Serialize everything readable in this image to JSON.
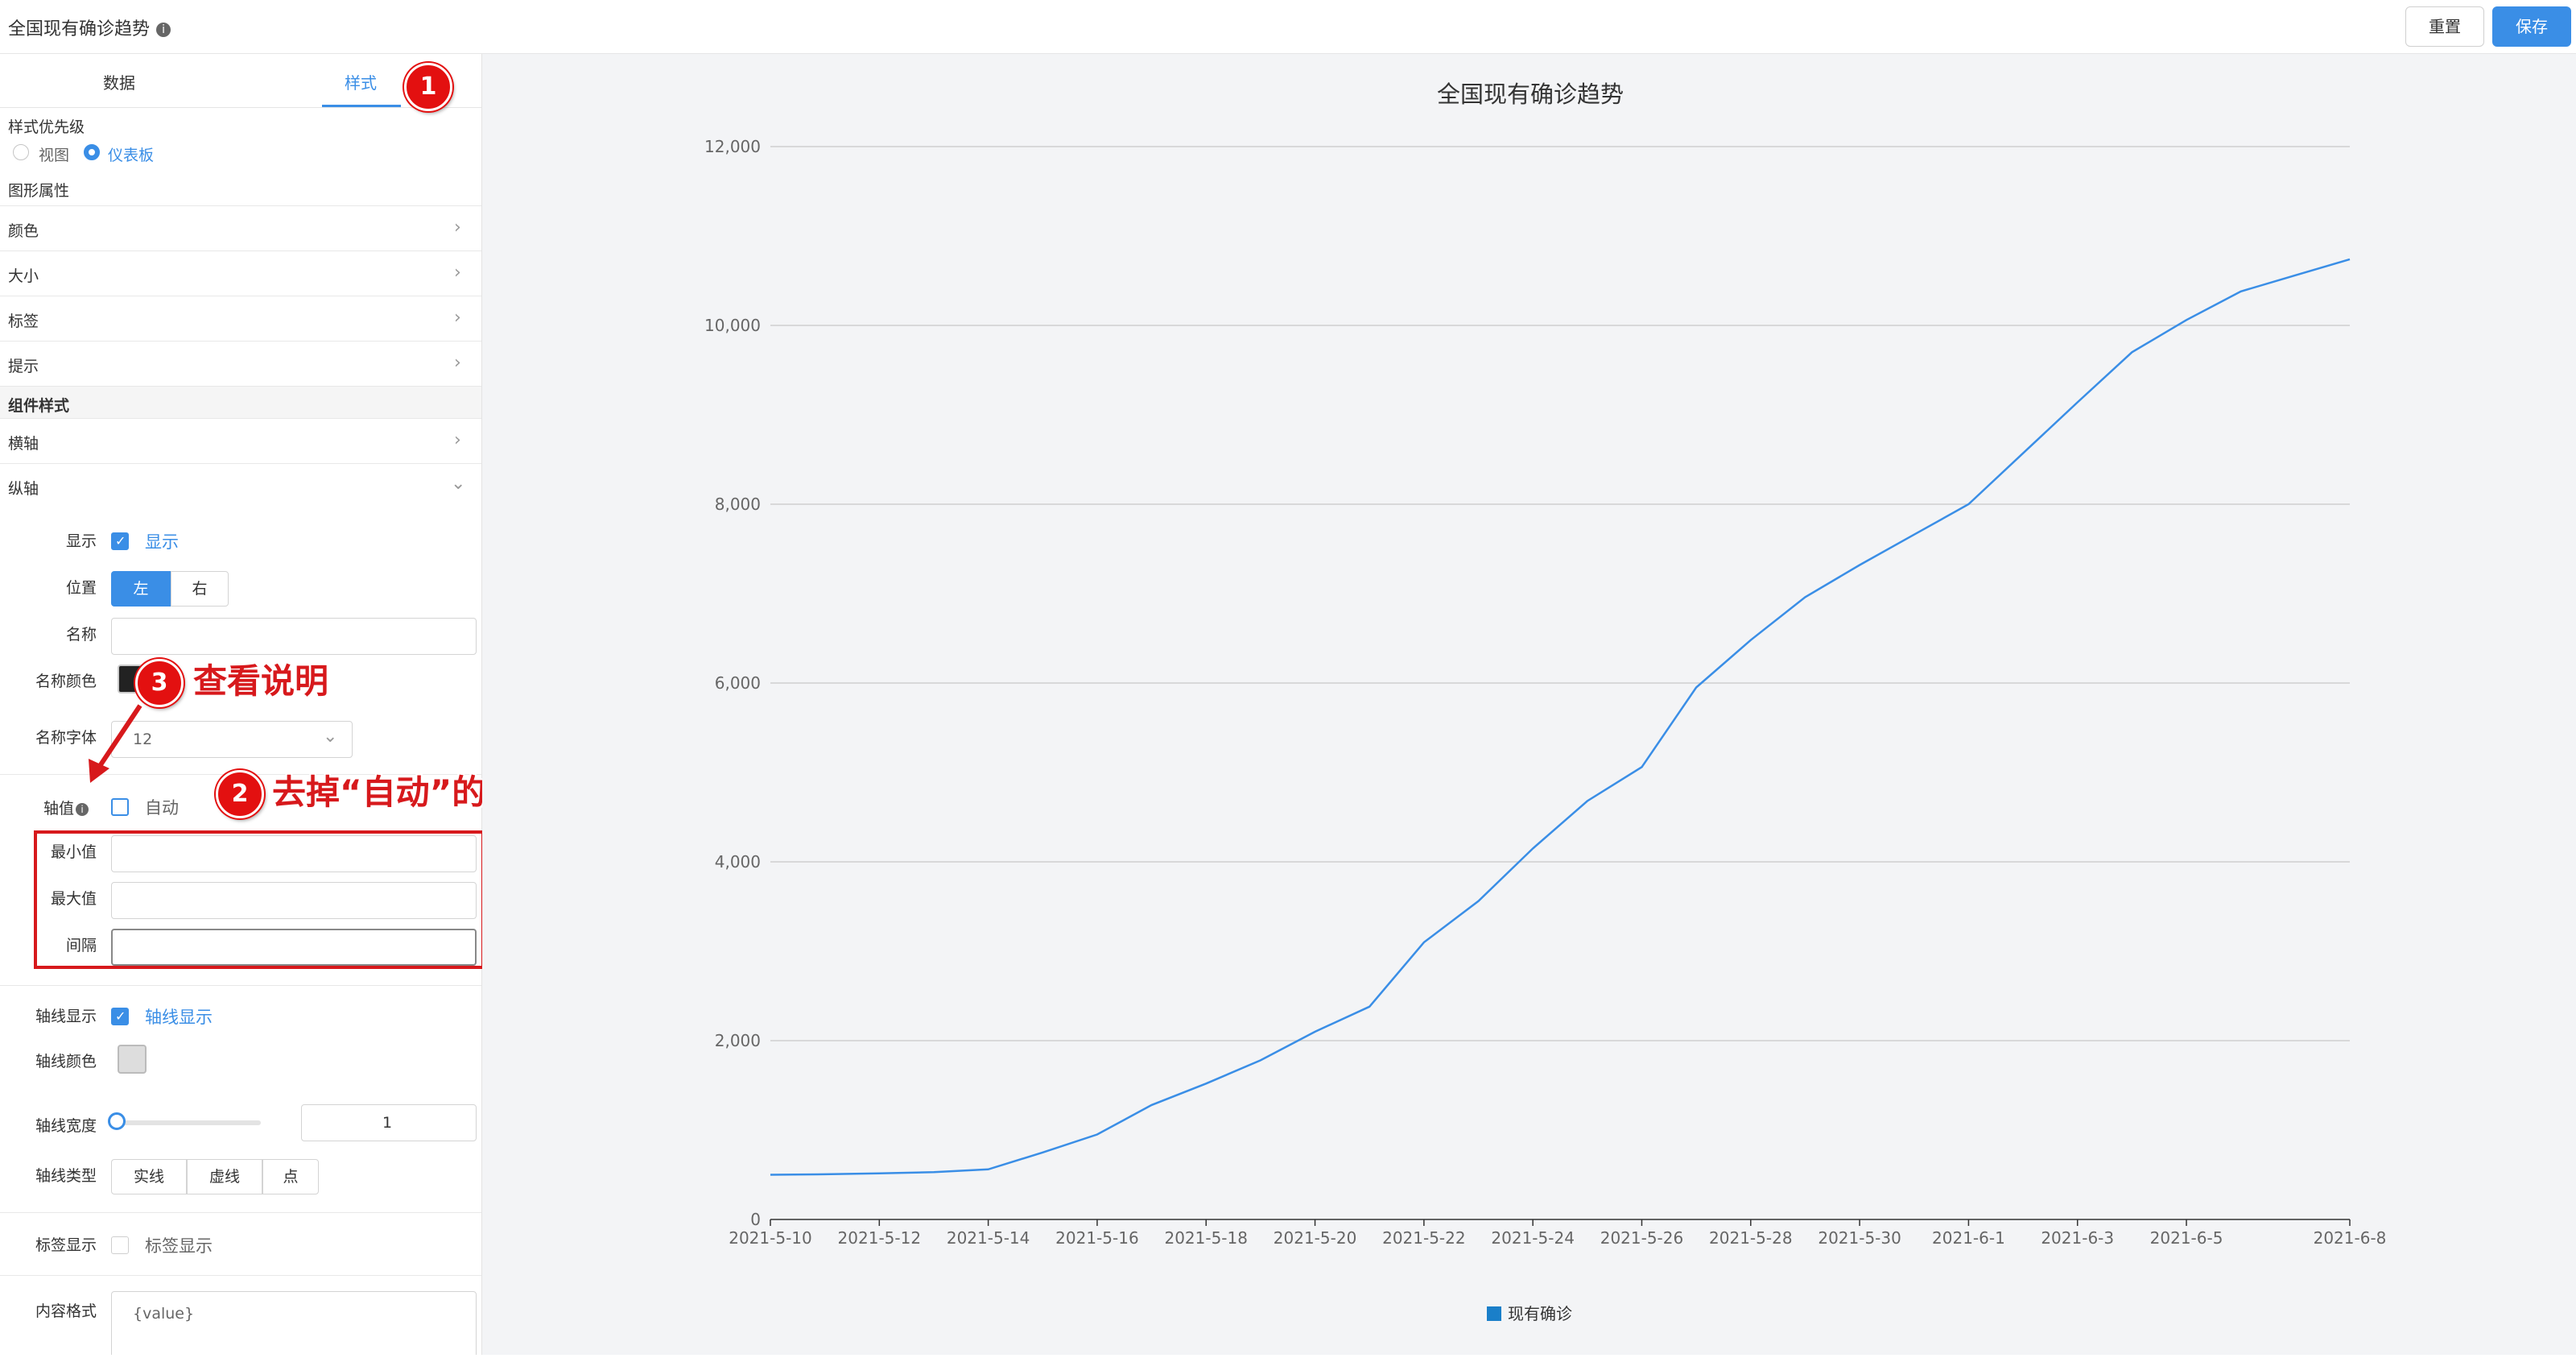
{
  "header": {
    "title": "全国现有确诊趋势",
    "info_icon": "info-icon",
    "reset_label": "重置",
    "save_label": "保存"
  },
  "tabs": {
    "data": "数据",
    "style": "样式",
    "active": "style"
  },
  "style_priority": {
    "label": "样式优先级",
    "options": [
      "视图",
      "仪表板"
    ],
    "selected": "仪表板"
  },
  "graphic_props": {
    "label": "图形属性",
    "items": [
      "颜色",
      "大小",
      "标签",
      "提示"
    ]
  },
  "component_style": {
    "label": "组件样式",
    "x_axis": "横轴",
    "y_axis": "纵轴"
  },
  "y_axis_settings": {
    "show_label": "显示",
    "show_checkbox_text": "显示",
    "show_checked": true,
    "position_label": "位置",
    "position_options": [
      "左",
      "右"
    ],
    "position_selected": "左",
    "name_label": "名称",
    "name_value": "",
    "name_color_label": "名称颜色",
    "name_font_label": "名称字体",
    "name_font_value": "12",
    "axis_value_label": "轴值",
    "auto_text": "自动",
    "auto_checked": false,
    "min_label": "最小值",
    "max_label": "最大值",
    "interval_label": "间隔",
    "min_value": "",
    "max_value": "",
    "interval_value": "",
    "axis_line_show_label": "轴线显示",
    "axis_line_show_text": "轴线显示",
    "axis_line_show_checked": true,
    "axis_line_color_label": "轴线颜色",
    "axis_line_width_label": "轴线宽度",
    "axis_line_width_value": "1",
    "axis_line_type_label": "轴线类型",
    "axis_line_types": [
      "实线",
      "虚线",
      "点"
    ],
    "tick_label_show_label": "标签显示",
    "tick_label_show_text": "标签显示",
    "tick_label_show_checked": false,
    "content_format_label": "内容格式",
    "content_format_value": "{value}"
  },
  "annotations": [
    {
      "number": "1",
      "text": ""
    },
    {
      "number": "2",
      "text": "去掉“自动”的勾选"
    },
    {
      "number": "3",
      "text": "查看说明"
    }
  ],
  "colors": {
    "accent": "#3a8ee6",
    "line": "#3a8ee6",
    "annotation": "#d7191c"
  },
  "chart_data": {
    "type": "line",
    "title": "全国现有确诊趋势",
    "xlabel": "",
    "ylabel": "",
    "ylim": [
      0,
      12000
    ],
    "yticks": [
      0,
      2000,
      4000,
      6000,
      8000,
      10000,
      12000
    ],
    "ytick_labels": [
      "0",
      "2,000",
      "4,000",
      "6,000",
      "8,000",
      "10,000",
      "12,000"
    ],
    "xtick_labels": [
      "2021-5-10",
      "2021-5-12",
      "2021-5-14",
      "2021-5-16",
      "2021-5-18",
      "2021-5-20",
      "2021-5-22",
      "2021-5-24",
      "2021-5-26",
      "2021-5-28",
      "2021-5-30",
      "2021-6-1",
      "2021-6-3",
      "2021-6-5",
      "2021-6-8"
    ],
    "grid": true,
    "legend_position": "bottom-center",
    "x": [
      "2021-5-10",
      "2021-5-11",
      "2021-5-12",
      "2021-5-13",
      "2021-5-14",
      "2021-5-15",
      "2021-5-16",
      "2021-5-17",
      "2021-5-18",
      "2021-5-19",
      "2021-5-20",
      "2021-5-21",
      "2021-5-22",
      "2021-5-23",
      "2021-5-24",
      "2021-5-25",
      "2021-5-26",
      "2021-5-27",
      "2021-5-28",
      "2021-5-29",
      "2021-5-30",
      "2021-5-31",
      "2021-6-1",
      "2021-6-2",
      "2021-6-3",
      "2021-6-4",
      "2021-6-5",
      "2021-6-6",
      "2021-6-7",
      "2021-6-8"
    ],
    "series": [
      {
        "name": "现有确诊",
        "values": [
          500,
          505,
          515,
          530,
          560,
          750,
          950,
          1280,
          1520,
          1780,
          2100,
          2380,
          3100,
          3560,
          4150,
          4680,
          5060,
          5950,
          6480,
          6960,
          7320,
          7660,
          8000,
          8570,
          9140,
          9700,
          10060,
          10380,
          10560,
          10740
        ]
      }
    ]
  }
}
